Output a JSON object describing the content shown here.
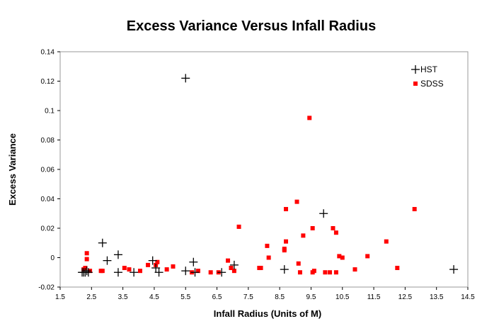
{
  "chart_data": {
    "type": "scatter",
    "title": "Excess Variance Versus Infall Radius",
    "xlabel": "Infall Radius (Units of M)",
    "ylabel": "Excess Variance",
    "xlim": [
      1.5,
      14.5
    ],
    "ylim": [
      -0.02,
      0.14
    ],
    "x_ticks": [
      "1.5",
      "2.5",
      "3.5",
      "4.5",
      "5.5",
      "6.5",
      "7.5",
      "8.5",
      "9.5",
      "10.5",
      "11.5",
      "12.5",
      "13.5",
      "14.5"
    ],
    "y_ticks": [
      "-0.02",
      "0",
      "0.02",
      "0.04",
      "0.06",
      "0.08",
      "0.1",
      "0.12",
      "0.14"
    ],
    "grid": false,
    "legend_position": "top-right",
    "series": [
      {
        "name": "HST",
        "marker": "plus",
        "color": "#000000",
        "points": [
          [
            2.2,
            -0.01
          ],
          [
            2.25,
            -0.01
          ],
          [
            2.3,
            -0.01
          ],
          [
            2.35,
            -0.009
          ],
          [
            2.4,
            -0.01
          ],
          [
            2.85,
            0.01
          ],
          [
            3.0,
            -0.002
          ],
          [
            3.35,
            0.002
          ],
          [
            3.35,
            -0.01
          ],
          [
            3.85,
            -0.01
          ],
          [
            4.45,
            -0.002
          ],
          [
            4.55,
            -0.007
          ],
          [
            4.65,
            -0.01
          ],
          [
            5.5,
            0.122
          ],
          [
            5.5,
            -0.009
          ],
          [
            5.75,
            -0.003
          ],
          [
            5.8,
            -0.01
          ],
          [
            6.65,
            -0.01
          ],
          [
            7.05,
            -0.005
          ],
          [
            8.65,
            -0.008
          ],
          [
            9.9,
            0.03
          ],
          [
            14.05,
            -0.008
          ]
        ]
      },
      {
        "name": "SDSS",
        "marker": "square",
        "color": "#ff0000",
        "points": [
          [
            2.25,
            -0.008
          ],
          [
            2.3,
            -0.007
          ],
          [
            2.35,
            0.003
          ],
          [
            2.35,
            -0.001
          ],
          [
            2.45,
            -0.009
          ],
          [
            2.8,
            -0.009
          ],
          [
            2.85,
            -0.009
          ],
          [
            3.55,
            -0.007
          ],
          [
            3.7,
            -0.008
          ],
          [
            4.05,
            -0.009
          ],
          [
            4.3,
            -0.005
          ],
          [
            4.55,
            -0.005
          ],
          [
            4.6,
            -0.003
          ],
          [
            4.9,
            -0.008
          ],
          [
            5.1,
            -0.006
          ],
          [
            5.7,
            -0.01
          ],
          [
            5.9,
            -0.009
          ],
          [
            6.3,
            -0.01
          ],
          [
            6.55,
            -0.01
          ],
          [
            6.85,
            -0.002
          ],
          [
            6.95,
            -0.007
          ],
          [
            7.05,
            -0.009
          ],
          [
            7.2,
            0.021
          ],
          [
            7.85,
            -0.007
          ],
          [
            7.9,
            -0.007
          ],
          [
            8.1,
            0.008
          ],
          [
            8.15,
            0.0
          ],
          [
            8.65,
            0.006
          ],
          [
            8.65,
            0.005
          ],
          [
            8.7,
            0.011
          ],
          [
            8.7,
            0.033
          ],
          [
            9.05,
            0.038
          ],
          [
            9.1,
            -0.004
          ],
          [
            9.15,
            -0.01
          ],
          [
            9.25,
            0.015
          ],
          [
            9.45,
            0.095
          ],
          [
            9.55,
            -0.01
          ],
          [
            9.55,
            0.02
          ],
          [
            9.6,
            -0.009
          ],
          [
            9.95,
            -0.01
          ],
          [
            10.1,
            -0.01
          ],
          [
            10.2,
            0.02
          ],
          [
            10.3,
            0.017
          ],
          [
            10.3,
            -0.01
          ],
          [
            10.4,
            0.001
          ],
          [
            10.5,
            0.0
          ],
          [
            10.9,
            -0.008
          ],
          [
            11.3,
            0.001
          ],
          [
            11.9,
            0.011
          ],
          [
            12.25,
            -0.007
          ],
          [
            12.8,
            0.033
          ]
        ]
      }
    ]
  }
}
